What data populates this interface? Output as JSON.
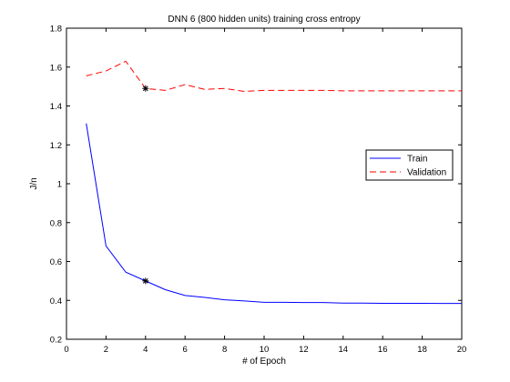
{
  "chart_data": {
    "type": "line",
    "title": "DNN 6 (800 hidden units) training cross entropy",
    "xlabel": "# of Epoch",
    "ylabel": "J/n",
    "xlim": [
      0,
      20
    ],
    "ylim": [
      0.2,
      1.8
    ],
    "xticks": [
      0,
      2,
      4,
      6,
      8,
      10,
      12,
      14,
      16,
      18,
      20
    ],
    "yticks": [
      0.2,
      0.4,
      0.6,
      0.8,
      1,
      1.2,
      1.4,
      1.6,
      1.8
    ],
    "grid": false,
    "legend_position": "right",
    "series": [
      {
        "name": "Train",
        "color": "#0000ff",
        "line_style": "solid",
        "x": [
          1,
          2,
          3,
          4,
          5,
          6,
          7,
          8,
          9,
          10,
          11,
          12,
          13,
          14,
          15,
          16,
          17,
          18,
          19,
          20
        ],
        "y": [
          1.31,
          0.68,
          0.545,
          0.5,
          0.455,
          0.425,
          0.415,
          0.403,
          0.397,
          0.39,
          0.39,
          0.389,
          0.389,
          0.386,
          0.386,
          0.385,
          0.385,
          0.385,
          0.384,
          0.384
        ]
      },
      {
        "name": "Validation",
        "color": "#ff0000",
        "line_style": "dashed",
        "x": [
          1,
          2,
          3,
          4,
          5,
          6,
          7,
          8,
          9,
          10,
          11,
          12,
          13,
          14,
          15,
          16,
          17,
          18,
          19,
          20
        ],
        "y": [
          1.555,
          1.58,
          1.63,
          1.49,
          1.48,
          1.51,
          1.485,
          1.49,
          1.475,
          1.48,
          1.48,
          1.48,
          1.48,
          1.478,
          1.478,
          1.478,
          1.478,
          1.478,
          1.478,
          1.478
        ]
      }
    ],
    "markers": [
      {
        "series": "Train",
        "x": 4,
        "y": 0.5,
        "symbol": "asterisk"
      },
      {
        "series": "Validation",
        "x": 4,
        "y": 1.49,
        "symbol": "asterisk"
      }
    ]
  }
}
